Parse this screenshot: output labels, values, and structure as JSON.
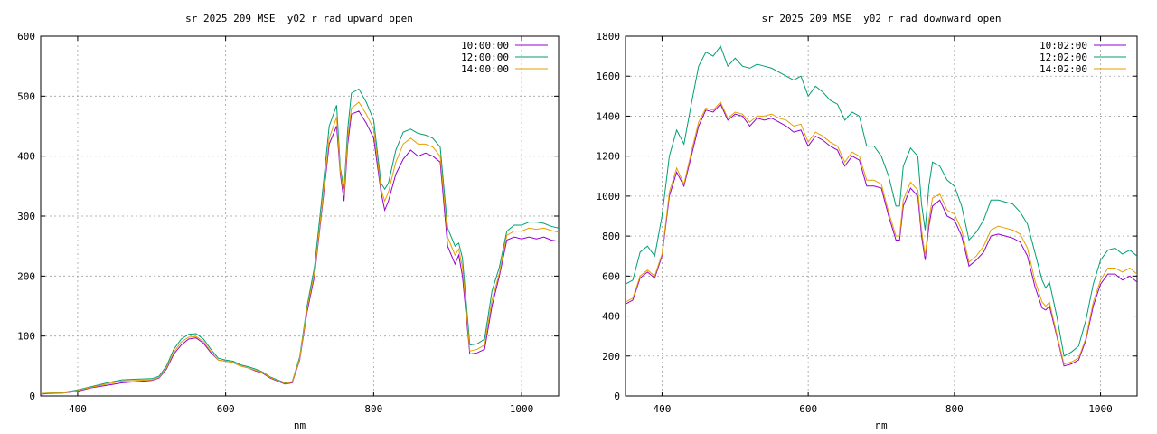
{
  "chart_data": [
    {
      "type": "line",
      "title": "sr_2025_209_MSE__y02_r_rad_upward_open",
      "xlabel": "nm",
      "ylabel": "",
      "xlim": [
        350,
        1050
      ],
      "ylim": [
        0,
        600
      ],
      "xticks": [
        400,
        600,
        800,
        1000
      ],
      "yticks": [
        0,
        100,
        200,
        300,
        400,
        500,
        600
      ],
      "grid": true,
      "legend_position": "top-right",
      "x": [
        350,
        360,
        380,
        400,
        420,
        440,
        460,
        480,
        500,
        510,
        520,
        530,
        540,
        550,
        560,
        570,
        580,
        590,
        600,
        610,
        620,
        630,
        640,
        650,
        660,
        670,
        680,
        690,
        700,
        710,
        720,
        730,
        740,
        750,
        755,
        760,
        765,
        770,
        780,
        790,
        800,
        810,
        815,
        820,
        830,
        840,
        850,
        860,
        870,
        880,
        890,
        900,
        910,
        915,
        920,
        930,
        940,
        950,
        960,
        970,
        980,
        990,
        1000,
        1010,
        1020,
        1030,
        1040,
        1050
      ],
      "series": [
        {
          "name": "10:00:00",
          "color": "#9400d3",
          "values": [
            3,
            4,
            5,
            8,
            14,
            18,
            22,
            24,
            26,
            30,
            45,
            70,
            85,
            95,
            97,
            88,
            72,
            60,
            58,
            56,
            50,
            47,
            42,
            38,
            30,
            25,
            20,
            22,
            60,
            140,
            200,
            310,
            420,
            450,
            370,
            325,
            420,
            470,
            475,
            455,
            430,
            340,
            310,
            325,
            370,
            395,
            410,
            400,
            405,
            400,
            390,
            250,
            220,
            235,
            200,
            70,
            72,
            78,
            150,
            200,
            260,
            265,
            262,
            265,
            262,
            265,
            260,
            258
          ]
        },
        {
          "name": "12:00:00",
          "color": "#009e73",
          "values": [
            4,
            5,
            6,
            10,
            16,
            22,
            27,
            28,
            29,
            33,
            50,
            78,
            95,
            103,
            104,
            95,
            78,
            63,
            60,
            58,
            52,
            49,
            45,
            40,
            32,
            27,
            22,
            24,
            65,
            150,
            215,
            330,
            450,
            485,
            380,
            345,
            445,
            505,
            512,
            490,
            460,
            355,
            345,
            355,
            410,
            440,
            445,
            438,
            435,
            430,
            415,
            280,
            250,
            255,
            230,
            85,
            87,
            95,
            175,
            215,
            275,
            285,
            285,
            290,
            290,
            288,
            283,
            280
          ]
        },
        {
          "name": "14:00:00",
          "color": "#e69f00",
          "values": [
            4,
            5,
            5,
            9,
            15,
            20,
            25,
            26,
            27,
            31,
            47,
            73,
            90,
            98,
            99,
            91,
            74,
            60,
            58,
            56,
            50,
            47,
            43,
            39,
            31,
            26,
            21,
            23,
            62,
            145,
            205,
            315,
            430,
            465,
            375,
            335,
            430,
            480,
            490,
            470,
            445,
            345,
            325,
            340,
            390,
            420,
            430,
            420,
            420,
            415,
            400,
            265,
            235,
            245,
            215,
            75,
            78,
            85,
            160,
            205,
            268,
            275,
            275,
            280,
            278,
            280,
            276,
            273
          ]
        }
      ]
    },
    {
      "type": "line",
      "title": "sr_2025_209_MSE__y02_r_rad_downward_open",
      "xlabel": "nm",
      "ylabel": "",
      "xlim": [
        350,
        1050
      ],
      "ylim": [
        0,
        1800
      ],
      "xticks": [
        400,
        600,
        800,
        1000
      ],
      "yticks": [
        0,
        200,
        400,
        600,
        800,
        1000,
        1200,
        1400,
        1600,
        1800
      ],
      "grid": true,
      "legend_position": "top-right",
      "x": [
        350,
        360,
        370,
        380,
        390,
        400,
        410,
        420,
        430,
        440,
        450,
        460,
        470,
        480,
        490,
        500,
        510,
        520,
        530,
        540,
        550,
        560,
        570,
        580,
        590,
        600,
        610,
        620,
        630,
        640,
        650,
        660,
        670,
        680,
        690,
        700,
        710,
        720,
        725,
        730,
        740,
        750,
        755,
        760,
        765,
        770,
        780,
        790,
        800,
        810,
        820,
        830,
        840,
        850,
        860,
        870,
        880,
        890,
        900,
        910,
        920,
        925,
        930,
        940,
        950,
        960,
        970,
        980,
        990,
        1000,
        1010,
        1020,
        1030,
        1040,
        1050
      ],
      "series": [
        {
          "name": "10:02:00",
          "color": "#9400d3",
          "values": [
            460,
            480,
            590,
            620,
            590,
            700,
            1000,
            1120,
            1050,
            1200,
            1350,
            1430,
            1420,
            1460,
            1380,
            1410,
            1400,
            1350,
            1390,
            1380,
            1390,
            1370,
            1350,
            1320,
            1330,
            1250,
            1300,
            1280,
            1250,
            1230,
            1150,
            1200,
            1180,
            1050,
            1050,
            1040,
            900,
            780,
            780,
            950,
            1040,
            1000,
            800,
            680,
            850,
            950,
            980,
            900,
            880,
            800,
            650,
            680,
            720,
            800,
            810,
            800,
            790,
            770,
            700,
            550,
            440,
            430,
            450,
            300,
            150,
            160,
            180,
            280,
            450,
            560,
            610,
            610,
            580,
            600,
            570
          ]
        },
        {
          "name": "12:02:00",
          "color": "#009e73",
          "values": [
            560,
            580,
            720,
            750,
            700,
            900,
            1200,
            1330,
            1260,
            1460,
            1650,
            1720,
            1700,
            1750,
            1650,
            1690,
            1650,
            1640,
            1660,
            1650,
            1640,
            1620,
            1600,
            1580,
            1600,
            1500,
            1550,
            1520,
            1480,
            1460,
            1380,
            1420,
            1400,
            1250,
            1250,
            1200,
            1100,
            950,
            950,
            1150,
            1240,
            1200,
            960,
            830,
            1050,
            1170,
            1150,
            1080,
            1050,
            950,
            780,
            820,
            880,
            980,
            980,
            970,
            960,
            920,
            860,
            720,
            580,
            540,
            570,
            400,
            200,
            220,
            250,
            380,
            560,
            680,
            730,
            740,
            710,
            730,
            700
          ]
        },
        {
          "name": "14:02:00",
          "color": "#e69f00",
          "values": [
            470,
            490,
            600,
            630,
            600,
            710,
            1020,
            1140,
            1060,
            1220,
            1370,
            1440,
            1430,
            1470,
            1390,
            1420,
            1410,
            1370,
            1400,
            1400,
            1410,
            1390,
            1380,
            1350,
            1360,
            1270,
            1320,
            1300,
            1270,
            1250,
            1170,
            1220,
            1200,
            1080,
            1080,
            1060,
            920,
            800,
            800,
            980,
            1070,
            1030,
            830,
            700,
            880,
            990,
            1010,
            930,
            910,
            830,
            670,
            700,
            750,
            830,
            850,
            840,
            830,
            810,
            740,
            580,
            470,
            450,
            470,
            310,
            160,
            170,
            190,
            290,
            470,
            580,
            640,
            640,
            620,
            640,
            610
          ]
        }
      ]
    }
  ]
}
